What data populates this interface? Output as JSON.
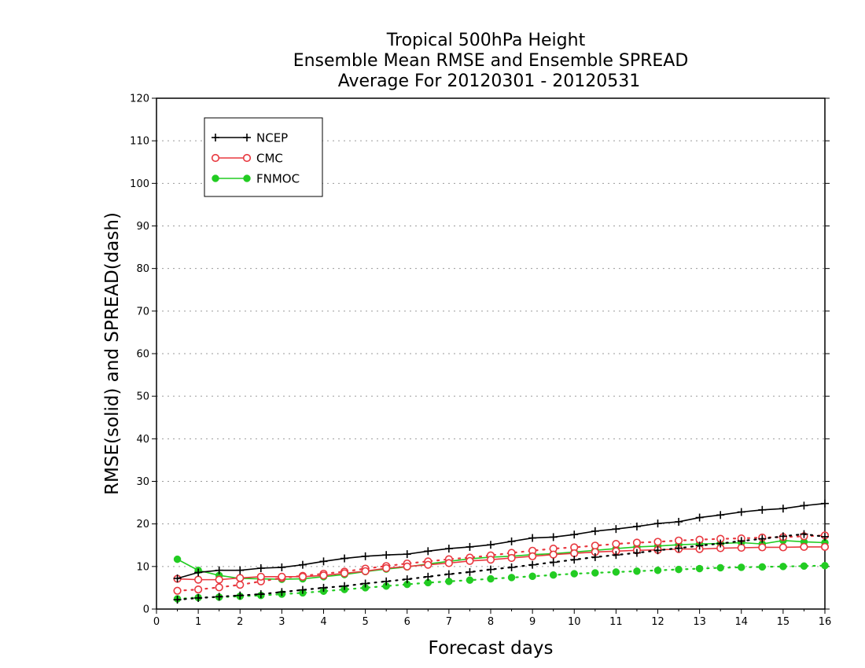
{
  "chart_data": {
    "type": "line",
    "title_lines": [
      "Tropical 500hPa Height",
      "Ensemble Mean RMSE and Ensemble SPREAD",
      "Average For 20120301 - 20120531"
    ],
    "xlabel": "Forecast days",
    "ylabel": "RMSE(solid) and SPREAD(dash)",
    "xlim": [
      0,
      16
    ],
    "ylim": [
      0,
      120
    ],
    "xticks": [
      0,
      1,
      2,
      3,
      4,
      5,
      6,
      7,
      8,
      9,
      10,
      11,
      12,
      13,
      14,
      15,
      16
    ],
    "yticks": [
      0,
      10,
      20,
      30,
      40,
      50,
      60,
      70,
      80,
      90,
      100,
      110,
      120
    ],
    "grid": "horizontal-dotted",
    "legend_position": "top-left",
    "x": [
      0.5,
      1,
      1.5,
      2,
      2.5,
      3,
      3.5,
      4,
      4.5,
      5,
      5.5,
      6,
      6.5,
      7,
      7.5,
      8,
      8.5,
      9,
      9.5,
      10,
      10.5,
      11,
      11.5,
      12,
      12.5,
      13,
      13.5,
      14,
      14.5,
      15,
      15.5,
      16
    ],
    "series": [
      {
        "name": "NCEP",
        "color": "#000000",
        "marker": "plus",
        "rmse": [
          7.2,
          8.6,
          9.1,
          9.1,
          9.6,
          9.8,
          10.4,
          11.2,
          11.9,
          12.4,
          12.7,
          12.9,
          13.6,
          14.2,
          14.6,
          15.1,
          15.9,
          16.7,
          16.9,
          17.5,
          18.3,
          18.8,
          19.4,
          20.1,
          20.5,
          21.5,
          22.1,
          22.8,
          23.3,
          23.6,
          24.3,
          24.8
        ],
        "spread": [
          2.2,
          2.6,
          2.9,
          3.2,
          3.5,
          4.0,
          4.5,
          5.0,
          5.4,
          6.0,
          6.5,
          7.0,
          7.6,
          8.2,
          8.7,
          9.3,
          9.8,
          10.4,
          11.0,
          11.6,
          12.2,
          12.7,
          13.2,
          13.8,
          14.3,
          14.9,
          15.4,
          16.0,
          16.5,
          17.1,
          17.6,
          17.0
        ]
      },
      {
        "name": "CMC",
        "color": "#e8383f",
        "marker": "open-circle",
        "rmse": [
          7.1,
          6.9,
          6.9,
          7.3,
          7.6,
          7.6,
          7.6,
          7.9,
          8.4,
          8.9,
          9.6,
          10.0,
          10.4,
          10.8,
          11.3,
          11.6,
          12.0,
          12.4,
          12.8,
          13.1,
          13.4,
          13.6,
          13.8,
          13.9,
          14.1,
          14.1,
          14.3,
          14.4,
          14.5,
          14.5,
          14.6,
          14.6
        ],
        "spread": [
          4.3,
          4.6,
          5.1,
          5.7,
          6.5,
          7.3,
          7.8,
          8.3,
          8.8,
          9.5,
          10.1,
          10.7,
          11.2,
          11.7,
          12.1,
          12.6,
          13.2,
          13.7,
          14.2,
          14.5,
          14.9,
          15.3,
          15.6,
          15.8,
          16.1,
          16.3,
          16.5,
          16.6,
          16.8,
          16.9,
          17.1,
          17.3
        ]
      },
      {
        "name": "FNMOC",
        "color": "#22cc22",
        "marker": "filled-circle",
        "rmse": [
          11.7,
          9.1,
          7.9,
          7.2,
          7.1,
          7.0,
          7.1,
          7.6,
          8.1,
          8.8,
          9.4,
          9.9,
          10.6,
          11.2,
          11.8,
          12.2,
          12.4,
          12.8,
          13.0,
          13.4,
          13.8,
          14.2,
          14.6,
          14.8,
          15.1,
          15.3,
          15.4,
          15.6,
          15.3,
          16.1,
          15.8,
          15.6
        ],
        "spread": [
          2.4,
          2.7,
          2.8,
          3.0,
          3.2,
          3.5,
          3.8,
          4.2,
          4.6,
          5.0,
          5.4,
          5.8,
          6.2,
          6.5,
          6.8,
          7.1,
          7.4,
          7.7,
          8.0,
          8.3,
          8.5,
          8.7,
          8.9,
          9.1,
          9.3,
          9.5,
          9.7,
          9.8,
          9.9,
          10.0,
          10.1,
          10.2
        ]
      }
    ]
  }
}
